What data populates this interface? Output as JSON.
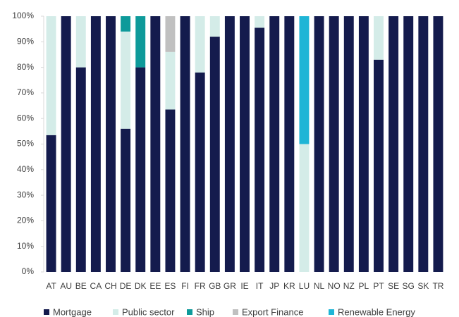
{
  "chart_data": {
    "type": "bar",
    "stacked": true,
    "categories": [
      "AT",
      "AU",
      "BE",
      "CA",
      "CH",
      "DE",
      "DK",
      "EE",
      "ES",
      "FI",
      "FR",
      "GB",
      "GR",
      "IE",
      "IT",
      "JP",
      "KR",
      "LU",
      "NL",
      "NO",
      "NZ",
      "PL",
      "PT",
      "SE",
      "SG",
      "SK",
      "TR"
    ],
    "series": [
      {
        "name": "Mortgage",
        "color": "#141b4d",
        "values": [
          53.5,
          100,
          80,
          100,
          100,
          56,
          80,
          100,
          63.5,
          100,
          78,
          92,
          100,
          100,
          95.5,
          100,
          100,
          0,
          100,
          100,
          100,
          100,
          83,
          100,
          100,
          100,
          100
        ]
      },
      {
        "name": "Public sector",
        "color": "#d4ece8",
        "values": [
          46.5,
          0,
          20,
          0,
          0,
          38,
          0,
          0,
          22.5,
          0,
          22,
          8,
          0,
          0,
          4.5,
          0,
          0,
          50,
          0,
          0,
          0,
          0,
          17,
          0,
          0,
          0,
          0
        ]
      },
      {
        "name": "Ship",
        "color": "#0e9a9a",
        "values": [
          0,
          0,
          0,
          0,
          0,
          6,
          20,
          0,
          0,
          0,
          0,
          0,
          0,
          0,
          0,
          0,
          0,
          0,
          0,
          0,
          0,
          0,
          0,
          0,
          0,
          0,
          0
        ]
      },
      {
        "name": "Export Finance",
        "color": "#c0c0c0",
        "values": [
          0,
          0,
          0,
          0,
          0,
          0,
          0,
          0,
          14,
          0,
          0,
          0,
          0,
          0,
          0,
          0,
          0,
          0,
          0,
          0,
          0,
          0,
          0,
          0,
          0,
          0,
          0
        ]
      },
      {
        "name": "Renewable Energy",
        "color": "#1fb5d6",
        "values": [
          0,
          0,
          0,
          0,
          0,
          0,
          0,
          0,
          0,
          0,
          0,
          0,
          0,
          0,
          0,
          0,
          0,
          50,
          0,
          0,
          0,
          0,
          0,
          0,
          0,
          0,
          0
        ]
      }
    ],
    "ylim": [
      0,
      100
    ],
    "yticks": [
      {
        "value": 0,
        "label": "0%"
      },
      {
        "value": 10,
        "label": "10%"
      },
      {
        "value": 20,
        "label": "20%"
      },
      {
        "value": 30,
        "label": "30%"
      },
      {
        "value": 40,
        "label": "40%"
      },
      {
        "value": 50,
        "label": "50%"
      },
      {
        "value": 60,
        "label": "60%"
      },
      {
        "value": 70,
        "label": "70%"
      },
      {
        "value": 80,
        "label": "80%"
      },
      {
        "value": 90,
        "label": "90%"
      },
      {
        "value": 100,
        "label": "100%"
      }
    ],
    "grid": false,
    "legend": "bottom"
  }
}
